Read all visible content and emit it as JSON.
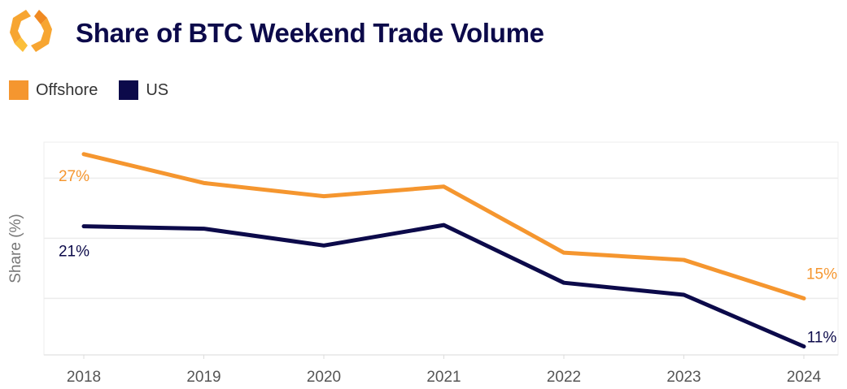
{
  "header": {
    "title": "Share of BTC Weekend Trade Volume",
    "logo": "orange-hexagon-logo"
  },
  "chart_data": {
    "type": "line",
    "title": "Share of BTC Weekend Trade Volume",
    "xlabel": "",
    "ylabel": "Share (%)",
    "categories": [
      "2018",
      "2019",
      "2020",
      "2021",
      "2022",
      "2023",
      "2024"
    ],
    "ylim": [
      10.3,
      28
    ],
    "grid": true,
    "gridlines_y": [
      15,
      20,
      25
    ],
    "legend_position": "top-left",
    "series": [
      {
        "name": "Offshore",
        "color": "#f5962f",
        "values": [
          27,
          24.6,
          23.5,
          24.3,
          18.8,
          18.2,
          15
        ],
        "labels": {
          "start": "27%",
          "end": "15%"
        }
      },
      {
        "name": "US",
        "color": "#0c0a4a",
        "values": [
          21,
          20.8,
          19.4,
          21.1,
          16.3,
          15.3,
          11
        ],
        "labels": {
          "start": "21%",
          "end": "11%"
        }
      }
    ]
  }
}
